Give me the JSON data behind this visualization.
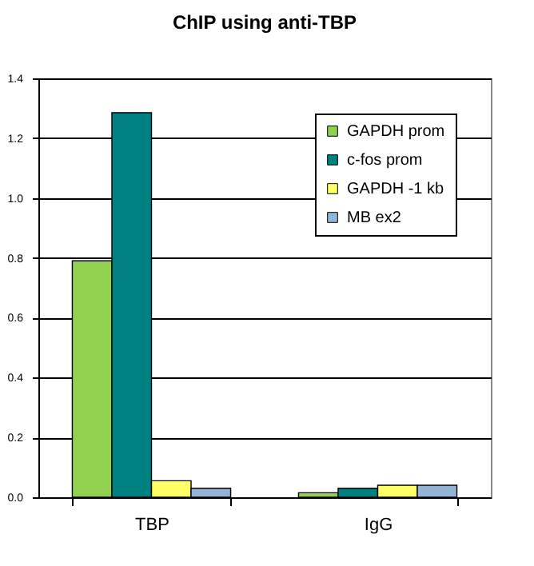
{
  "chart_data": {
    "type": "bar",
    "title": "ChIP using anti-TBP",
    "categories": [
      "TBP",
      "IgG"
    ],
    "series": [
      {
        "name": "GAPDH prom",
        "color": "#92d050",
        "values": [
          0.79,
          0.015
        ]
      },
      {
        "name": "c-fos prom",
        "color": "#008080",
        "values": [
          1.285,
          0.03
        ]
      },
      {
        "name": "GAPDH -1 kb",
        "color": "#ffff66",
        "values": [
          0.055,
          0.04
        ]
      },
      {
        "name": "MB ex2",
        "color": "#95b3d7",
        "values": [
          0.03,
          0.04
        ]
      }
    ],
    "ylim": [
      0,
      1.4
    ],
    "yticks": [
      {
        "value": 0,
        "label": "0.0"
      },
      {
        "value": 0.2,
        "label": "0.2"
      },
      {
        "value": 0.4,
        "label": "0.4"
      },
      {
        "value": 0.6,
        "label": "0.6"
      },
      {
        "value": 0.8,
        "label": "0.8"
      },
      {
        "value": 1.0,
        "label": "1.0"
      },
      {
        "value": 1.2,
        "label": "1.2"
      },
      {
        "value": 1.4,
        "label": "1.4"
      }
    ],
    "grid": "y",
    "legend": "top right"
  }
}
